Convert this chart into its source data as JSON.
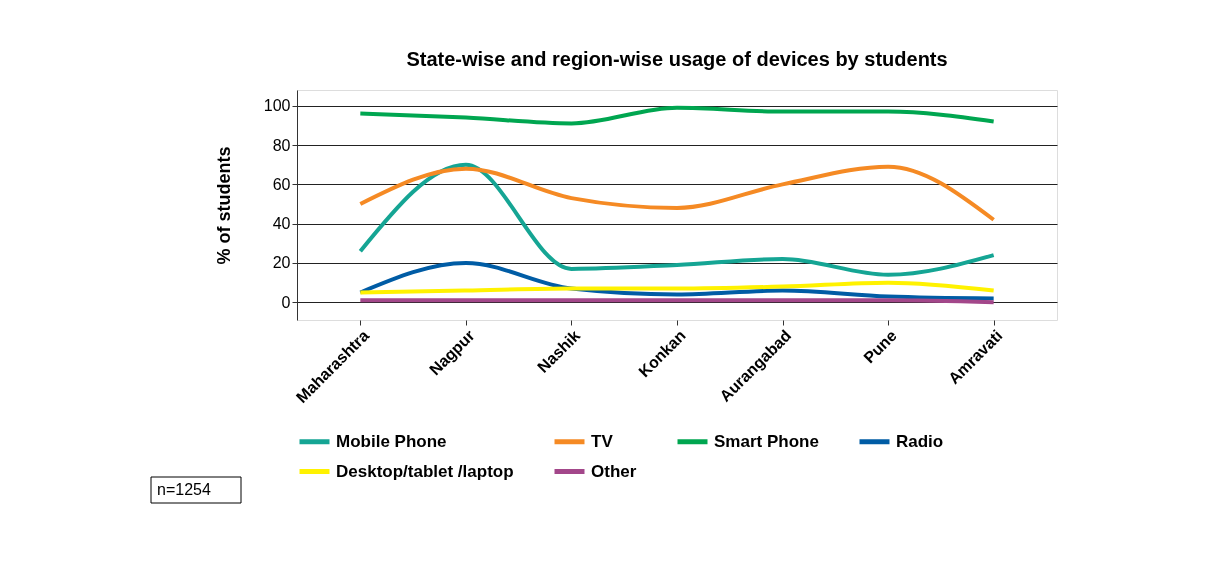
{
  "chart_data": {
    "type": "line",
    "title": "State-wise  and region-wise usage of devices by students",
    "ylabel": "% of students",
    "categories": [
      "Maharashtra",
      "Nagpur",
      "Nashik",
      "Konkan",
      "Aurangabad",
      "Pune",
      "Amravati"
    ],
    "series": [
      {
        "name": "Mobile Phone",
        "color": "#15a594",
        "values": [
          26,
          70,
          17,
          19,
          22,
          14,
          24
        ]
      },
      {
        "name": "TV",
        "color": "#f58a24",
        "values": [
          50,
          68,
          53,
          48,
          60,
          69,
          42
        ]
      },
      {
        "name": "Smart Phone",
        "color": "#00a650",
        "values": [
          96,
          94,
          91,
          99,
          97,
          97,
          92
        ]
      },
      {
        "name": "Radio",
        "color": "#005ca5",
        "values": [
          5,
          20,
          7,
          4,
          6,
          3,
          2
        ]
      },
      {
        "name": "Desktop/tablet /laptop",
        "color": "#fff200",
        "values": [
          5,
          6,
          7,
          7,
          8,
          10,
          6
        ]
      },
      {
        "name": "Other",
        "color": "#a3478a",
        "values": [
          1,
          1,
          1,
          1,
          1,
          1,
          0
        ]
      }
    ],
    "ylim": [
      -9,
      108
    ],
    "yticks": [
      0,
      20,
      40,
      60,
      80,
      100
    ],
    "grid": "y",
    "legend": "bottom",
    "marker": "none",
    "line_style": "solid",
    "annotations": [
      "n=1254"
    ]
  }
}
